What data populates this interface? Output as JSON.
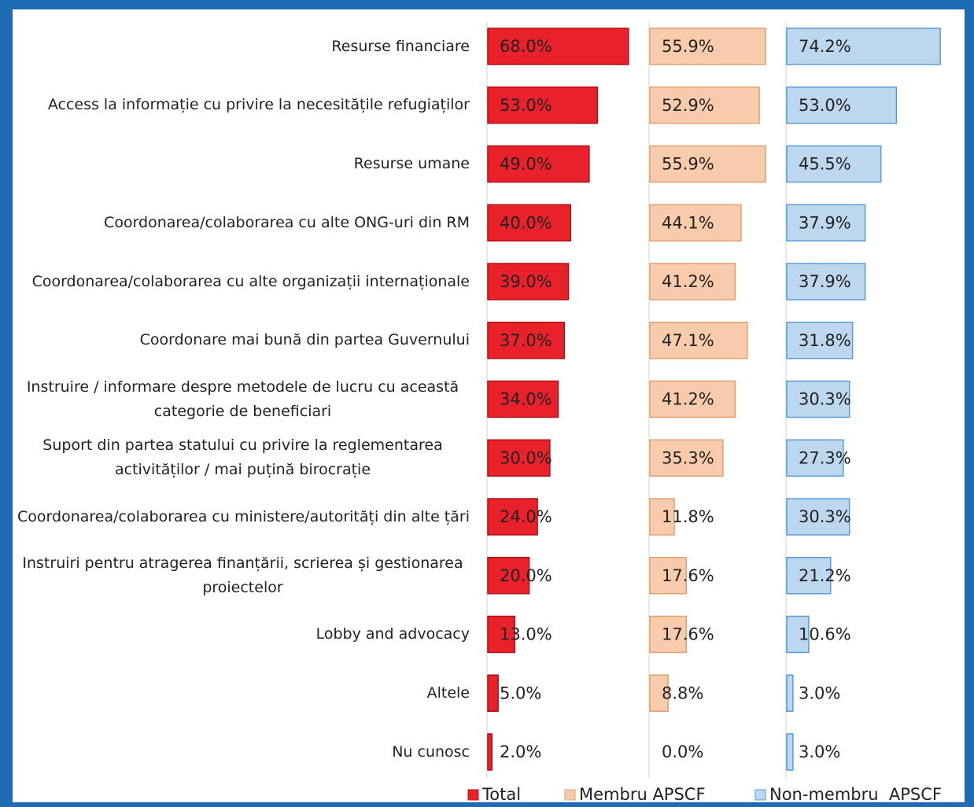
{
  "chart_data": {
    "type": "bar",
    "categories": [
      "Resurse financiare",
      "Access la informație cu privire la necesitățile refugiaților",
      "Resurse umane",
      "Coordonarea/colaborarea cu alte ONG-uri din RM",
      "Coordonarea/colaborarea cu alte organizații internaționale",
      "Coordonare mai bună din partea Guvernului",
      "Instruire / informare despre metodele de lucru cu această categorie de beneficiari",
      "Suport din partea statului cu privire la reglementarea activităților / mai puțină birocrație",
      "Coordonarea/colaborarea cu ministere/autorități din alte țări",
      "Instruiri pentru atragerea finanțării, scrierea și gestionarea proiectelor",
      "Lobby and advocacy",
      "Altele",
      "Nu cunosc"
    ],
    "series": [
      {
        "name": "Total",
        "color": "#e8212a",
        "values": [
          68.0,
          53.0,
          49.0,
          40.0,
          39.0,
          37.0,
          34.0,
          30.0,
          24.0,
          20.0,
          13.0,
          5.0,
          2.0
        ],
        "value_labels": [
          "68.0%",
          "53.0%",
          "49.0%",
          "40.0%",
          "39.0%",
          "37.0%",
          "34.0%",
          "30.0%",
          "24.0%",
          "20.0%",
          "13.0%",
          "5.0%",
          "2.0%"
        ]
      },
      {
        "name": "Membru APSCF",
        "color": "#f8cbad",
        "values": [
          55.9,
          52.9,
          55.9,
          44.1,
          41.2,
          47.1,
          41.2,
          35.3,
          11.8,
          17.6,
          17.6,
          8.8,
          0.0
        ],
        "value_labels": [
          "55.9%",
          "52.9%",
          "55.9%",
          "44.1%",
          "41.2%",
          "47.1%",
          "41.2%",
          "35.3%",
          "11.8%",
          "17.6%",
          "17.6%",
          "8.8%",
          "0.0%"
        ]
      },
      {
        "name": "Non-membru  APSCF",
        "color": "#bdd7ee",
        "values": [
          74.2,
          53.0,
          45.5,
          37.9,
          37.9,
          31.8,
          30.3,
          27.3,
          30.3,
          21.2,
          10.6,
          3.0,
          3.0
        ],
        "value_labels": [
          "74.2%",
          "53.0%",
          "45.5%",
          "37.9%",
          "37.9%",
          "31.8%",
          "30.3%",
          "27.3%",
          "30.3%",
          "21.2%",
          "10.6%",
          "3.0%",
          "3.0%"
        ]
      }
    ],
    "legend": "bottom"
  }
}
